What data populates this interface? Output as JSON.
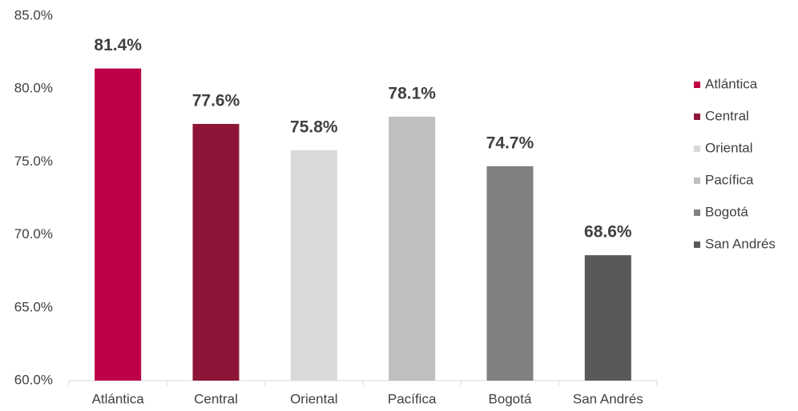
{
  "chart_data": {
    "type": "bar",
    "categories": [
      "Atlántica",
      "Central",
      "Oriental",
      "Pacífica",
      "Bogotá",
      "San Andrés"
    ],
    "values": [
      81.4,
      77.6,
      75.8,
      78.1,
      74.7,
      68.6
    ],
    "value_labels": [
      "81.4%",
      "77.6%",
      "75.8%",
      "78.1%",
      "74.7%",
      "68.6%"
    ],
    "colors": [
      "#bd0047",
      "#8e1538",
      "#d9d9d9",
      "#bfbfbf",
      "#808080",
      "#595959"
    ],
    "ylim": [
      60,
      85
    ],
    "yticks": [
      {
        "value": 60,
        "label": "60.0%"
      },
      {
        "value": 65,
        "label": "65.0%"
      },
      {
        "value": 70,
        "label": "70.0%"
      },
      {
        "value": 75,
        "label": "75.0%"
      },
      {
        "value": 80,
        "label": "80.0%"
      },
      {
        "value": 85,
        "label": "85.0%"
      }
    ],
    "grid": false,
    "legend": "right"
  }
}
